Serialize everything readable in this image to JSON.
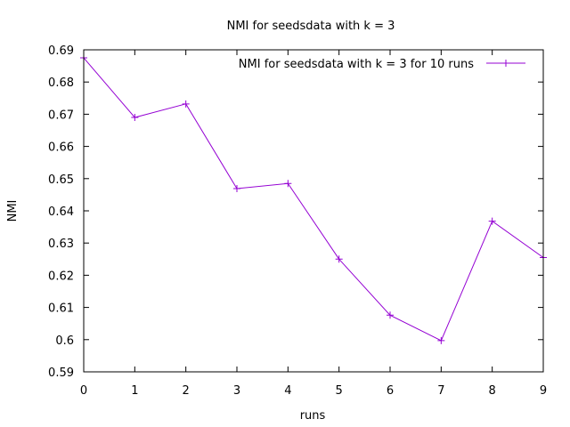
{
  "chart_data": {
    "type": "line",
    "title": "NMI for seedsdata with k = 3",
    "xlabel": "runs",
    "ylabel": "NMI",
    "xlim": [
      0,
      9
    ],
    "ylim": [
      0.59,
      0.69
    ],
    "x_ticks": [
      "0",
      "1",
      "2",
      "3",
      "4",
      "5",
      "6",
      "7",
      "8",
      "9"
    ],
    "y_ticks": [
      "0.59",
      "0.6",
      "0.61",
      "0.62",
      "0.63",
      "0.64",
      "0.65",
      "0.66",
      "0.67",
      "0.68",
      "0.69"
    ],
    "grid": false,
    "legend_position": "top-right",
    "series": [
      {
        "name": "NMI for seedsdata with k = 3 for 10 runs",
        "color": "#9400d3",
        "marker": "plus",
        "x": [
          0,
          1,
          2,
          3,
          4,
          5,
          6,
          7,
          8,
          9
        ],
        "values": [
          0.6875,
          0.669,
          0.6732,
          0.6469,
          0.6485,
          0.625,
          0.6076,
          0.5997,
          0.6368,
          0.6255
        ]
      }
    ]
  }
}
